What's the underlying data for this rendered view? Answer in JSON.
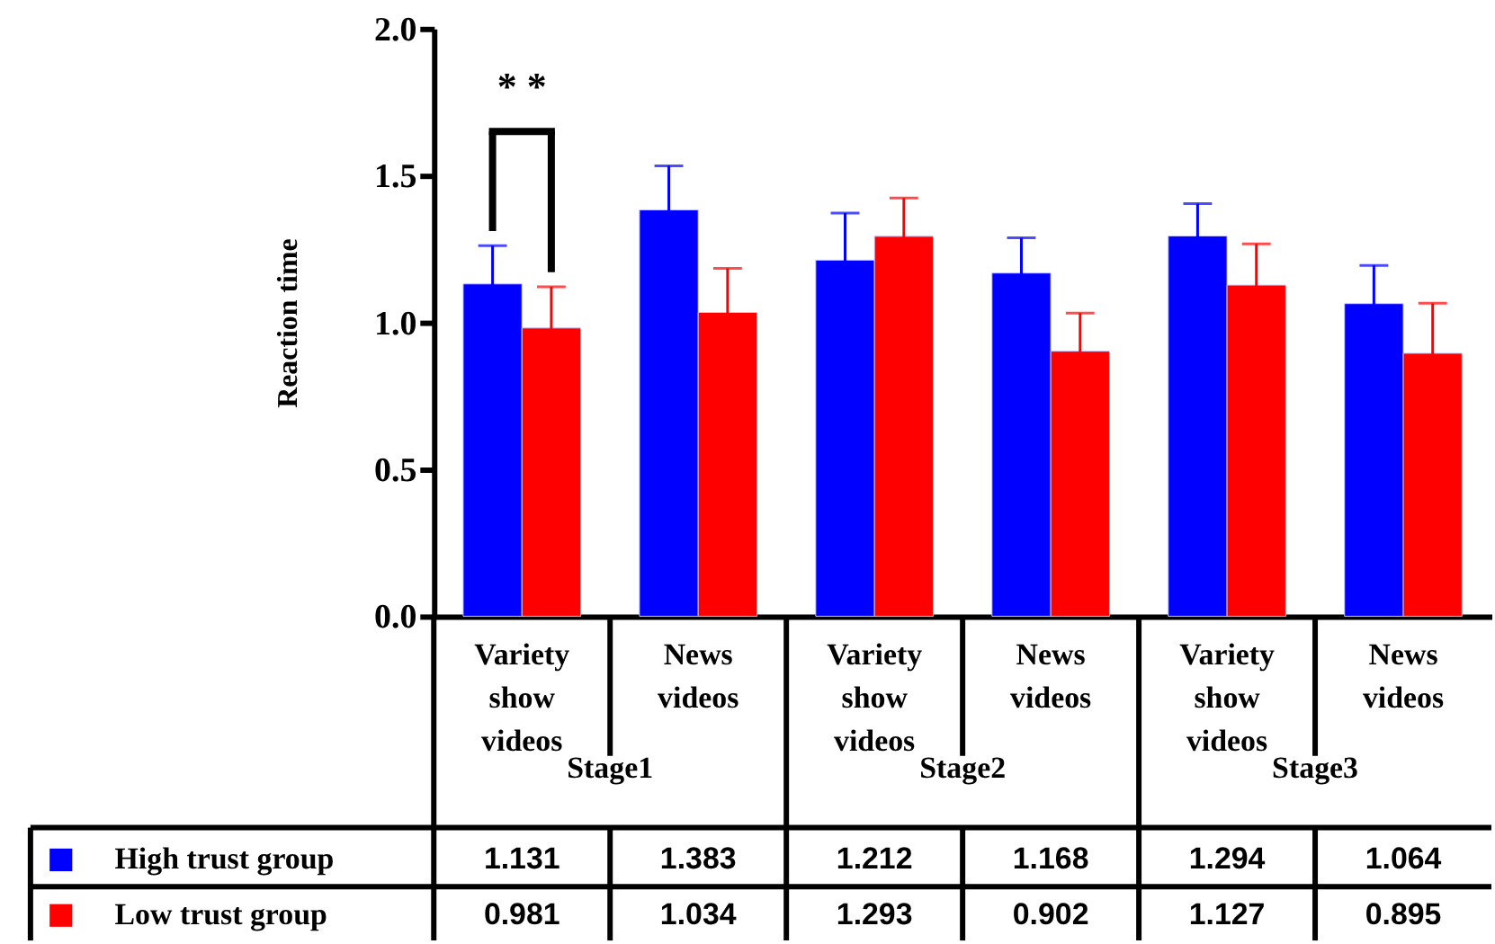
{
  "chart_data": {
    "type": "bar",
    "ylabel": "Reaction time",
    "categories": [
      "Variety show videos",
      "News videos",
      "Variety show videos",
      "News videos",
      "Variety show videos",
      "News videos"
    ],
    "series": [
      {
        "name": "High trust group",
        "color": "#0000ff",
        "values": [
          1.131,
          1.383,
          1.212,
          1.168,
          1.294,
          1.064
        ],
        "errors": [
          0.13,
          0.15,
          0.16,
          0.12,
          0.11,
          0.13
        ]
      },
      {
        "name": "Low trust group",
        "color": "#ff0000",
        "values": [
          0.981,
          1.034,
          1.293,
          0.902,
          1.127,
          0.895
        ],
        "errors": [
          0.14,
          0.15,
          0.13,
          0.13,
          0.14,
          0.17
        ]
      }
    ],
    "ylim": [
      0,
      2.0
    ],
    "yticks": [
      {
        "value": 0,
        "label": "0.0"
      },
      {
        "value": 0.5,
        "label": "0.5"
      },
      {
        "value": 1,
        "label": "1.0"
      },
      {
        "value": 1.5,
        "label": "1.5"
      },
      {
        "value": 2,
        "label": "2.0"
      }
    ],
    "annotations": [
      "* *",
      "Stage1",
      "Stage2",
      "Stage3"
    ],
    "data_labels": true,
    "legend": "bottom",
    "grid": false
  }
}
